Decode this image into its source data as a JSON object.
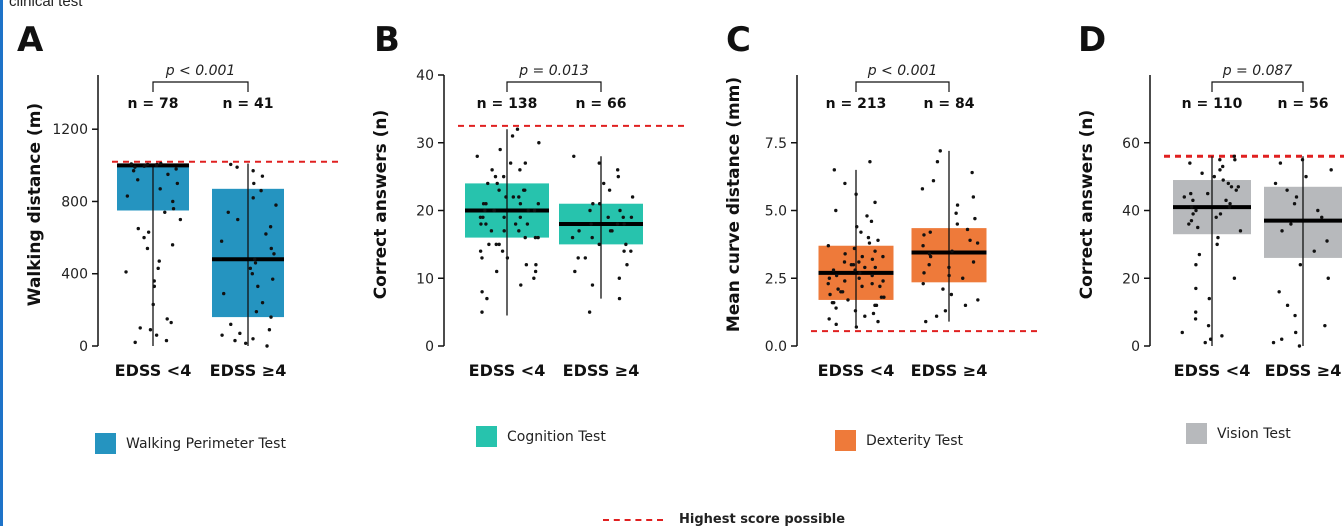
{
  "page": {
    "top_note": "clinical test"
  },
  "panels": [
    {
      "letter": "A",
      "legend": "Walking Perimeter Test",
      "color": "#2594c0"
    },
    {
      "letter": "B",
      "legend": "Cognition Test",
      "color": "#27c3ad"
    },
    {
      "letter": "C",
      "legend": "Dexterity Test",
      "color": "#ee7a3a"
    },
    {
      "letter": "D",
      "legend": "Vision Test",
      "color": "#b7b9bc"
    }
  ],
  "key": {
    "reference_line_label": "Highest score possible",
    "reference_line_color": "#e02020"
  },
  "chart_data": [
    {
      "type": "box",
      "ylabel": "Walking distance (m)",
      "ylim": [
        0,
        1500
      ],
      "yticks": [
        0,
        400,
        800,
        1200
      ],
      "categories": [
        "EDSS <4",
        "EDSS ≥4"
      ],
      "n_labels": [
        "n = 78",
        "n = 41"
      ],
      "p_label": "p < 0.001",
      "reference_line": 1020,
      "boxes": [
        {
          "min": 0,
          "q1": 750,
          "median": 1000,
          "q3": 1010,
          "max": 1010
        },
        {
          "min": 0,
          "q1": 160,
          "median": 480,
          "q3": 870,
          "max": 1010
        }
      ],
      "points": [
        [
          20,
          30,
          60,
          90,
          100,
          130,
          150,
          230,
          330,
          360,
          410,
          430,
          470,
          540,
          560,
          600,
          630,
          650,
          700,
          740,
          760,
          800,
          830,
          870,
          900,
          920,
          950,
          970,
          980,
          990,
          995,
          1000,
          1000,
          1005,
          1005,
          1008,
          1010
        ],
        [
          0,
          15,
          30,
          40,
          60,
          70,
          90,
          120,
          160,
          190,
          240,
          290,
          330,
          370,
          400,
          430,
          460,
          480,
          510,
          540,
          580,
          620,
          660,
          700,
          740,
          780,
          820,
          860,
          900,
          940,
          970,
          990,
          1005
        ]
      ]
    },
    {
      "type": "box",
      "ylabel": "Correct answers (n)",
      "ylim": [
        0,
        40
      ],
      "yticks": [
        0,
        10,
        20,
        30,
        40
      ],
      "categories": [
        "EDSS <4",
        "EDSS ≥4"
      ],
      "n_labels": [
        "n = 138",
        "n = 66"
      ],
      "p_label": "p = 0.013",
      "reference_line": 32.5,
      "boxes": [
        {
          "min": 4.5,
          "q1": 16,
          "median": 20,
          "q3": 24,
          "max": 32
        },
        {
          "min": 7,
          "q1": 15,
          "median": 18,
          "q3": 21,
          "max": 28
        }
      ],
      "points": [
        [
          5,
          7,
          8,
          9,
          10,
          11,
          11,
          12,
          12,
          13,
          13,
          14,
          14,
          15,
          15,
          15,
          16,
          16,
          16,
          17,
          17,
          17,
          18,
          18,
          18,
          18,
          19,
          19,
          19,
          19,
          20,
          20,
          20,
          20,
          20,
          21,
          21,
          21,
          21,
          22,
          22,
          22,
          23,
          23,
          23,
          24,
          24,
          25,
          25,
          26,
          26,
          27,
          27,
          28,
          29,
          30,
          31,
          32
        ],
        [
          5,
          7,
          9,
          10,
          11,
          12,
          13,
          13,
          14,
          14,
          15,
          15,
          16,
          16,
          17,
          17,
          17,
          18,
          18,
          18,
          19,
          19,
          19,
          20,
          20,
          21,
          21,
          22,
          23,
          24,
          25,
          26,
          27,
          28
        ]
      ]
    },
    {
      "type": "box",
      "ylabel": "Mean curve distance (mm)",
      "ylim": [
        0,
        10
      ],
      "yticks": [
        0.0,
        2.5,
        5.0,
        7.5
      ],
      "tick_labels": [
        "0.0",
        "2.5",
        "5.0",
        "7.5"
      ],
      "categories": [
        "EDSS <4",
        "EDSS ≥4"
      ],
      "n_labels": [
        "n = 213",
        "n = 84"
      ],
      "p_label": "p < 0.001",
      "reference_line": 0.55,
      "boxes": [
        {
          "min": 0.7,
          "q1": 1.7,
          "median": 2.7,
          "q3": 3.7,
          "max": 6.5
        },
        {
          "min": 0.9,
          "q1": 2.35,
          "median": 3.45,
          "q3": 4.35,
          "max": 7.2
        }
      ],
      "points": [
        [
          0.7,
          0.8,
          0.9,
          1.0,
          1.1,
          1.2,
          1.3,
          1.4,
          1.5,
          1.6,
          1.7,
          1.8,
          1.9,
          2.0,
          2.1,
          2.2,
          2.3,
          2.4,
          2.5,
          2.6,
          2.7,
          2.8,
          2.9,
          3.0,
          3.1,
          3.2,
          3.3,
          3.4,
          3.5,
          3.6,
          3.7,
          3.8,
          3.9,
          4.0,
          4.2,
          4.4,
          4.6,
          4.8,
          5.0,
          5.3,
          5.6,
          6.0,
          6.5,
          6.8,
          1.5,
          2.0,
          2.5,
          3.0,
          1.8,
          2.3,
          2.8,
          3.3,
          1.6,
          2.2,
          2.6,
          3.1,
          2.4,
          2.9
        ],
        [
          0.9,
          1.1,
          1.3,
          1.5,
          1.7,
          1.9,
          2.1,
          2.3,
          2.5,
          2.7,
          2.9,
          3.1,
          3.3,
          3.5,
          3.7,
          3.9,
          4.1,
          4.3,
          4.5,
          4.7,
          4.9,
          5.2,
          5.5,
          5.8,
          6.1,
          6.4,
          6.8,
          7.2,
          2.6,
          3.0,
          3.4,
          3.8,
          4.2
        ]
      ]
    },
    {
      "type": "box",
      "ylabel": "Correct answers (n)",
      "ylim": [
        0,
        80
      ],
      "yticks": [
        0,
        20,
        40,
        60
      ],
      "categories": [
        "EDSS <4",
        "EDSS ≥4"
      ],
      "n_labels": [
        "n = 110",
        "n = 56"
      ],
      "p_label": "p = 0.087",
      "reference_line": 56,
      "boxes": [
        {
          "min": 0,
          "q1": 33,
          "median": 41,
          "q3": 49,
          "max": 56
        },
        {
          "min": 0,
          "q1": 26,
          "median": 37,
          "q3": 47,
          "max": 56
        }
      ],
      "points": [
        [
          1,
          2,
          3,
          4,
          6,
          8,
          10,
          14,
          17,
          20,
          24,
          27,
          30,
          32,
          34,
          35,
          36,
          37,
          38,
          39,
          40,
          41,
          42,
          43,
          44,
          45,
          46,
          47,
          48,
          49,
          50,
          51,
          52,
          53,
          54,
          55,
          55,
          56,
          39,
          41,
          43,
          45,
          47
        ],
        [
          0,
          1,
          2,
          4,
          6,
          9,
          12,
          16,
          20,
          24,
          28,
          31,
          34,
          36,
          38,
          40,
          42,
          44,
          46,
          48,
          50,
          52,
          54,
          55
        ]
      ]
    }
  ]
}
